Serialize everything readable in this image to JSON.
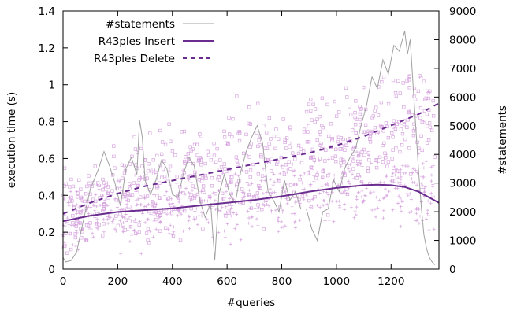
{
  "chart_data": {
    "type": "line",
    "xlabel": "#queries",
    "ylabel": "execution time (s)",
    "y2label": "#statements",
    "xlim": [
      0,
      1375
    ],
    "ylim": [
      0,
      1.4
    ],
    "y2lim": [
      0,
      9000
    ],
    "x_ticks": [
      "0",
      "200",
      "400",
      "600",
      "800",
      "1000",
      "1200"
    ],
    "y_ticks": [
      "0",
      "0.2",
      "0.4",
      "0.6",
      "0.8",
      "1",
      "1.2",
      "1.4"
    ],
    "y2_ticks": [
      "0",
      "1000",
      "2000",
      "3000",
      "4000",
      "5000",
      "6000",
      "7000",
      "8000",
      "9000"
    ],
    "legend_position": "top-left",
    "grid": false,
    "series": [
      {
        "name": "#statements",
        "axis": "right",
        "style": "thin solid gray line",
        "color": "#a0a0a0",
        "x": [
          0,
          10,
          30,
          50,
          70,
          100,
          130,
          150,
          170,
          190,
          210,
          230,
          250,
          270,
          280,
          290,
          300,
          320,
          340,
          360,
          380,
          400,
          420,
          440,
          460,
          480,
          500,
          520,
          540,
          555,
          570,
          590,
          610,
          630,
          650,
          670,
          690,
          710,
          730,
          750,
          770,
          790,
          810,
          830,
          850,
          870,
          890,
          910,
          930,
          950,
          970,
          990,
          1010,
          1030,
          1050,
          1070,
          1090,
          1110,
          1130,
          1150,
          1170,
          1190,
          1210,
          1230,
          1250,
          1260,
          1270,
          1280,
          1290,
          1300,
          1310,
          1320,
          1330,
          1340,
          1350,
          1360
        ],
        "values": [
          400,
          250,
          300,
          600,
          1500,
          2800,
          3500,
          4100,
          3600,
          3000,
          2200,
          3500,
          3900,
          3300,
          5200,
          4600,
          3100,
          2600,
          3100,
          3800,
          3500,
          2600,
          2500,
          3300,
          3900,
          3600,
          2400,
          1800,
          2300,
          300,
          2600,
          3300,
          2600,
          2300,
          3400,
          4100,
          4600,
          5000,
          4400,
          2700,
          2400,
          2000,
          3100,
          2400,
          2700,
          2100,
          2100,
          1400,
          1000,
          2000,
          2100,
          3100,
          2700,
          3500,
          3900,
          4200,
          5000,
          5700,
          6700,
          6300,
          7300,
          6800,
          7800,
          7600,
          8300,
          7500,
          8000,
          6500,
          5000,
          3500,
          2200,
          1200,
          700,
          400,
          250,
          150
        ]
      },
      {
        "name": "R43ples Insert",
        "axis": "left",
        "style": "thick solid purple line",
        "color": "#6a2c8f",
        "x": [
          0,
          100,
          200,
          300,
          400,
          500,
          600,
          700,
          800,
          900,
          1000,
          1100,
          1150,
          1200,
          1250,
          1300,
          1375
        ],
        "values": [
          0.26,
          0.29,
          0.31,
          0.32,
          0.33,
          0.345,
          0.36,
          0.375,
          0.395,
          0.42,
          0.44,
          0.455,
          0.458,
          0.455,
          0.445,
          0.42,
          0.36
        ]
      },
      {
        "name": "R43ples Delete",
        "axis": "left",
        "style": "dashed purple line",
        "color": "#6a2c8f",
        "x": [
          0,
          100,
          200,
          300,
          400,
          500,
          600,
          700,
          800,
          900,
          1000,
          1100,
          1200,
          1300,
          1375
        ],
        "values": [
          0.3,
          0.36,
          0.41,
          0.45,
          0.48,
          0.51,
          0.54,
          0.57,
          0.6,
          0.63,
          0.67,
          0.72,
          0.78,
          0.84,
          0.9
        ]
      }
    ],
    "scatter_note": "faint pink square and cross markers (individual Insert / Delete measurements) scattered around the fitted curves between roughly 0.1 s and 1.05 s"
  }
}
